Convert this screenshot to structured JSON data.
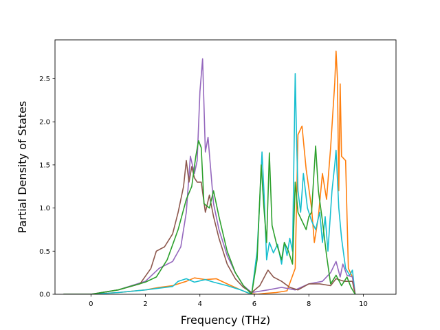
{
  "chart_data": {
    "type": "line",
    "title": "",
    "xlabel": "Frequency (THz)",
    "ylabel": "Partial Density of States",
    "xlim": [
      -1.32,
      11.2
    ],
    "ylim": [
      0,
      2.95
    ],
    "xticks": [
      0,
      2,
      4,
      6,
      8,
      10
    ],
    "yticks": [
      0.0,
      0.5,
      1.0,
      1.5,
      2.0,
      2.5
    ],
    "xtick_labels": [
      "0",
      "2",
      "4",
      "6",
      "8",
      "10"
    ],
    "ytick_labels": [
      "0.0",
      "0.5",
      "1.0",
      "1.5",
      "2.0",
      "2.5"
    ],
    "grid": false,
    "legend": "none",
    "series": [
      {
        "color": "#ff7f0e",
        "points": [
          [
            -1.0,
            0
          ],
          [
            0,
            0
          ],
          [
            1,
            0.02
          ],
          [
            2,
            0.05
          ],
          [
            2.5,
            0.08
          ],
          [
            3,
            0.1
          ],
          [
            3.5,
            0.15
          ],
          [
            3.8,
            0.19
          ],
          [
            4.2,
            0.17
          ],
          [
            4.6,
            0.18
          ],
          [
            5.0,
            0.12
          ],
          [
            5.5,
            0.05
          ],
          [
            5.8,
            0.01
          ],
          [
            6.1,
            0
          ],
          [
            6.4,
            0.01
          ],
          [
            6.8,
            0.02
          ],
          [
            7.2,
            0.04
          ],
          [
            7.5,
            0.3
          ],
          [
            7.6,
            1.85
          ],
          [
            7.75,
            1.95
          ],
          [
            7.9,
            1.45
          ],
          [
            8.1,
            1.0
          ],
          [
            8.2,
            0.6
          ],
          [
            8.35,
            0.9
          ],
          [
            8.5,
            1.4
          ],
          [
            8.65,
            1.1
          ],
          [
            8.8,
            1.7
          ],
          [
            8.9,
            2.2
          ],
          [
            8.95,
            2.45
          ],
          [
            9.0,
            2.82
          ],
          [
            9.05,
            2.5
          ],
          [
            9.1,
            1.2
          ],
          [
            9.15,
            2.44
          ],
          [
            9.2,
            1.6
          ],
          [
            9.35,
            1.55
          ],
          [
            9.45,
            0.3
          ],
          [
            9.6,
            0.2
          ],
          [
            9.7,
            0.0
          ]
        ]
      },
      {
        "color": "#17becf",
        "points": [
          [
            -1.0,
            0
          ],
          [
            0,
            0
          ],
          [
            1,
            0.02
          ],
          [
            2,
            0.05
          ],
          [
            2.5,
            0.07
          ],
          [
            3,
            0.09
          ],
          [
            3.2,
            0.15
          ],
          [
            3.5,
            0.18
          ],
          [
            3.8,
            0.14
          ],
          [
            4.2,
            0.17
          ],
          [
            4.5,
            0.14
          ],
          [
            5.0,
            0.1
          ],
          [
            5.5,
            0.05
          ],
          [
            5.9,
            0
          ],
          [
            6.1,
            0.5
          ],
          [
            6.2,
            1.1
          ],
          [
            6.28,
            1.65
          ],
          [
            6.35,
            1.2
          ],
          [
            6.45,
            0.4
          ],
          [
            6.55,
            0.6
          ],
          [
            6.7,
            0.48
          ],
          [
            6.85,
            0.58
          ],
          [
            7.0,
            0.35
          ],
          [
            7.1,
            0.6
          ],
          [
            7.2,
            0.45
          ],
          [
            7.3,
            0.65
          ],
          [
            7.4,
            0.5
          ],
          [
            7.5,
            2.56
          ],
          [
            7.55,
            1.8
          ],
          [
            7.6,
            1.2
          ],
          [
            7.7,
            0.95
          ],
          [
            7.8,
            1.4
          ],
          [
            7.95,
            1.0
          ],
          [
            8.1,
            0.85
          ],
          [
            8.25,
            0.75
          ],
          [
            8.4,
            0.95
          ],
          [
            8.5,
            0.6
          ],
          [
            8.6,
            0.9
          ],
          [
            8.7,
            0.5
          ],
          [
            8.85,
            1.2
          ],
          [
            8.95,
            1.5
          ],
          [
            9.0,
            1.67
          ],
          [
            9.1,
            1.0
          ],
          [
            9.2,
            0.65
          ],
          [
            9.35,
            0.3
          ],
          [
            9.5,
            0.22
          ],
          [
            9.6,
            0.28
          ],
          [
            9.7,
            0.0
          ]
        ]
      },
      {
        "color": "#9467bd",
        "points": [
          [
            -1.0,
            0
          ],
          [
            0,
            0
          ],
          [
            1,
            0.05
          ],
          [
            2,
            0.15
          ],
          [
            2.5,
            0.3
          ],
          [
            3,
            0.38
          ],
          [
            3.3,
            0.55
          ],
          [
            3.5,
            0.95
          ],
          [
            3.65,
            1.6
          ],
          [
            3.8,
            1.4
          ],
          [
            3.9,
            1.55
          ],
          [
            4.0,
            2.35
          ],
          [
            4.1,
            2.73
          ],
          [
            4.2,
            1.65
          ],
          [
            4.3,
            1.82
          ],
          [
            4.5,
            1.05
          ],
          [
            4.7,
            0.75
          ],
          [
            5.0,
            0.45
          ],
          [
            5.3,
            0.25
          ],
          [
            5.6,
            0.1
          ],
          [
            5.9,
            0.02
          ],
          [
            6.5,
            0.05
          ],
          [
            7,
            0.08
          ],
          [
            7.5,
            0.05
          ],
          [
            8,
            0.12
          ],
          [
            8.5,
            0.15
          ],
          [
            8.8,
            0.25
          ],
          [
            9.0,
            0.38
          ],
          [
            9.15,
            0.2
          ],
          [
            9.25,
            0.35
          ],
          [
            9.4,
            0.22
          ],
          [
            9.6,
            0.2
          ],
          [
            9.7,
            0.0
          ]
        ]
      },
      {
        "color": "#8c564b",
        "points": [
          [
            -1.0,
            0
          ],
          [
            0,
            0
          ],
          [
            1,
            0.05
          ],
          [
            1.8,
            0.12
          ],
          [
            2.2,
            0.3
          ],
          [
            2.4,
            0.5
          ],
          [
            2.7,
            0.55
          ],
          [
            3.0,
            0.7
          ],
          [
            3.2,
            0.95
          ],
          [
            3.4,
            1.25
          ],
          [
            3.5,
            1.55
          ],
          [
            3.6,
            1.3
          ],
          [
            3.7,
            1.48
          ],
          [
            3.8,
            1.35
          ],
          [
            3.9,
            1.3
          ],
          [
            4.05,
            1.3
          ],
          [
            4.2,
            0.95
          ],
          [
            4.35,
            1.15
          ],
          [
            4.5,
            0.9
          ],
          [
            4.7,
            0.65
          ],
          [
            5.0,
            0.35
          ],
          [
            5.3,
            0.18
          ],
          [
            5.6,
            0.08
          ],
          [
            5.9,
            0.02
          ],
          [
            6.2,
            0.1
          ],
          [
            6.5,
            0.28
          ],
          [
            6.7,
            0.2
          ],
          [
            7.0,
            0.15
          ],
          [
            7.3,
            0.08
          ],
          [
            7.6,
            0.05
          ],
          [
            8.0,
            0.12
          ],
          [
            8.4,
            0.12
          ],
          [
            8.8,
            0.1
          ],
          [
            9.0,
            0.18
          ],
          [
            9.3,
            0.15
          ],
          [
            9.6,
            0.15
          ],
          [
            9.7,
            0.0
          ]
        ]
      },
      {
        "color": "#2ca02c",
        "points": [
          [
            -1.0,
            0
          ],
          [
            0,
            0
          ],
          [
            1,
            0.05
          ],
          [
            2,
            0.14
          ],
          [
            2.4,
            0.2
          ],
          [
            2.8,
            0.4
          ],
          [
            3.2,
            0.75
          ],
          [
            3.5,
            1.1
          ],
          [
            3.7,
            1.25
          ],
          [
            3.85,
            1.6
          ],
          [
            3.95,
            1.78
          ],
          [
            4.05,
            1.7
          ],
          [
            4.15,
            1.05
          ],
          [
            4.35,
            1.0
          ],
          [
            4.5,
            1.2
          ],
          [
            4.7,
            0.9
          ],
          [
            5.0,
            0.5
          ],
          [
            5.3,
            0.25
          ],
          [
            5.6,
            0.1
          ],
          [
            5.9,
            0.0
          ],
          [
            6.1,
            0.4
          ],
          [
            6.25,
            1.5
          ],
          [
            6.35,
            1.0
          ],
          [
            6.45,
            0.6
          ],
          [
            6.55,
            1.64
          ],
          [
            6.65,
            0.8
          ],
          [
            6.8,
            0.6
          ],
          [
            7.0,
            0.4
          ],
          [
            7.1,
            0.6
          ],
          [
            7.25,
            0.5
          ],
          [
            7.4,
            0.35
          ],
          [
            7.5,
            1.3
          ],
          [
            7.6,
            0.95
          ],
          [
            7.75,
            0.85
          ],
          [
            7.9,
            0.75
          ],
          [
            8.0,
            0.9
          ],
          [
            8.1,
            0.95
          ],
          [
            8.25,
            1.72
          ],
          [
            8.35,
            1.2
          ],
          [
            8.5,
            0.85
          ],
          [
            8.65,
            0.45
          ],
          [
            8.8,
            0.12
          ],
          [
            9.0,
            0.22
          ],
          [
            9.2,
            0.1
          ],
          [
            9.4,
            0.2
          ],
          [
            9.55,
            0.08
          ],
          [
            9.7,
            0.0
          ]
        ]
      }
    ]
  }
}
